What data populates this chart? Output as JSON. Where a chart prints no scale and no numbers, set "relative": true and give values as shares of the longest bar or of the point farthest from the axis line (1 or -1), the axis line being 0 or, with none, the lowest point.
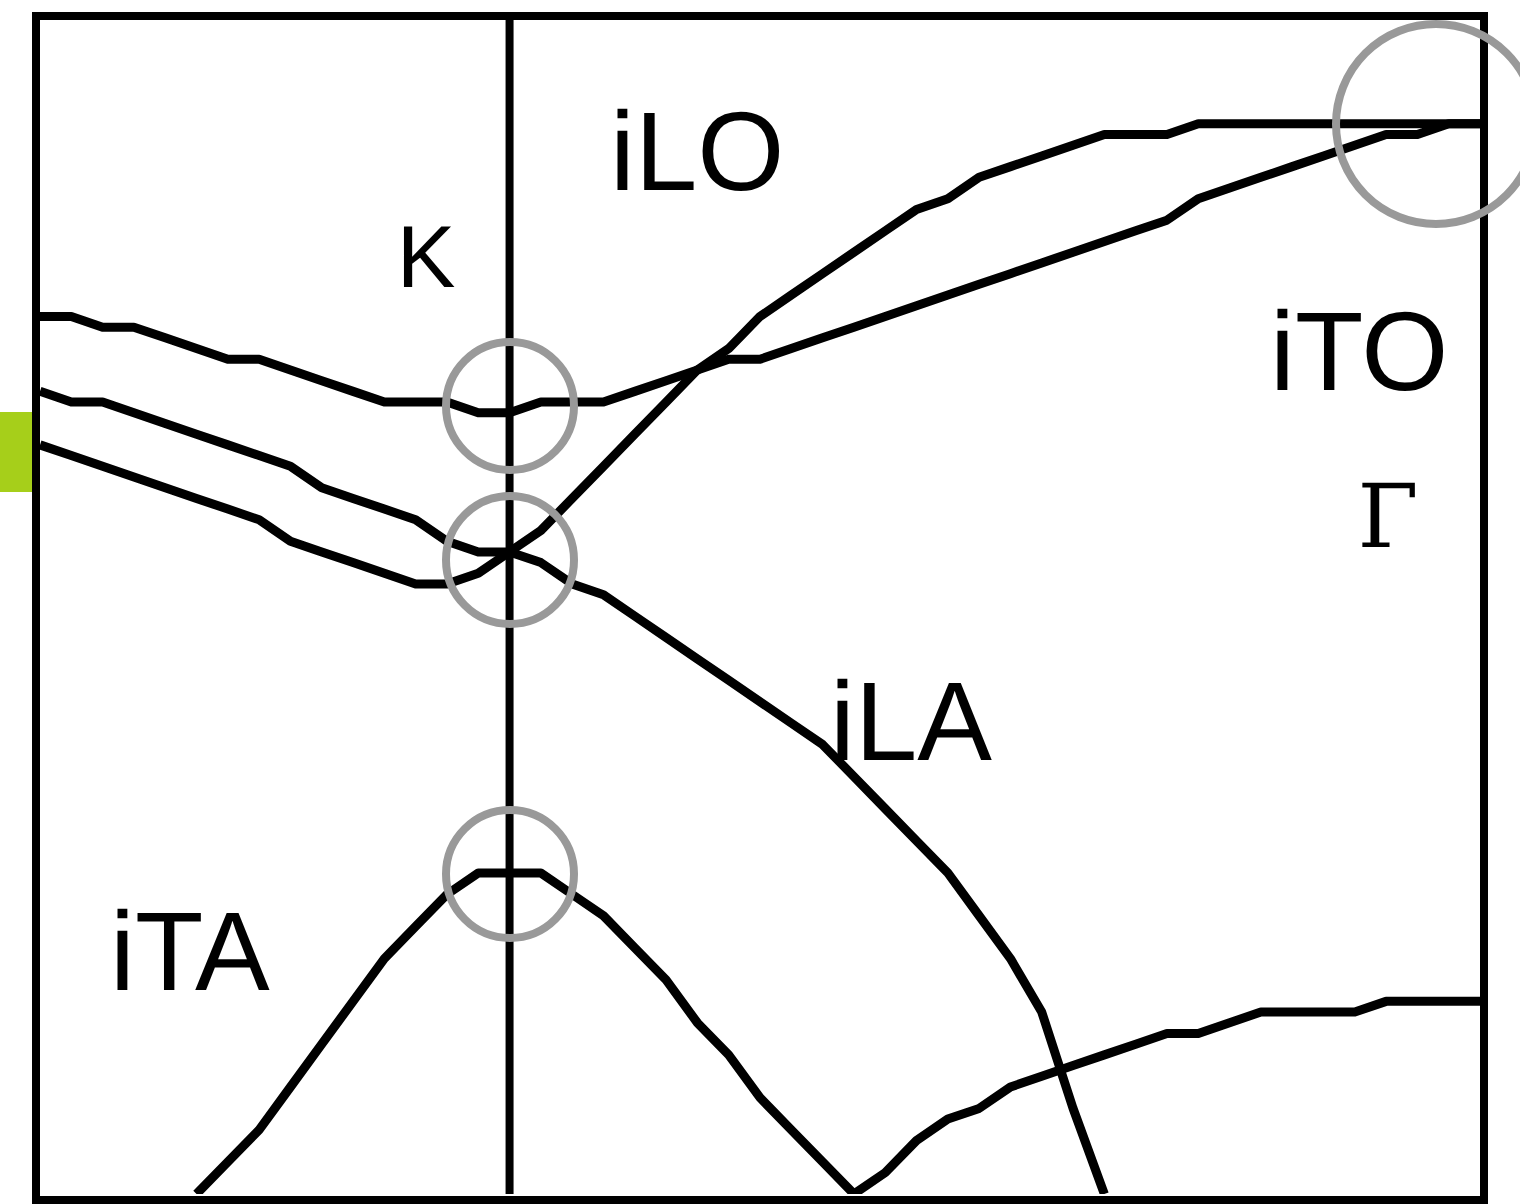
{
  "chart_data": {
    "type": "line",
    "relative": true,
    "marker": "none",
    "line_style": "solid",
    "annotations": [
      "K",
      "Γ"
    ],
    "categories": [
      null,
      null,
      null,
      null,
      null,
      null,
      null,
      null,
      null,
      null,
      null,
      null,
      null,
      null,
      null,
      null,
      null,
      null,
      null,
      null,
      null,
      null,
      null,
      null,
      null,
      null,
      null,
      null,
      null,
      null,
      null,
      null,
      null,
      null,
      null,
      null,
      null,
      null,
      null,
      null,
      null,
      null,
      null,
      null,
      null,
      null,
      null
    ],
    "series": [
      {
        "name": "iTO",
        "color": "#000000",
        "values": [
          0.82,
          0.82,
          0.81,
          0.81,
          0.8,
          0.79,
          0.78,
          0.78,
          0.77,
          0.76,
          0.75,
          0.74,
          0.74,
          0.74,
          0.73,
          0.73,
          0.74,
          0.74,
          0.74,
          0.75,
          0.76,
          0.77,
          0.78,
          0.78,
          0.79,
          0.8,
          0.81,
          0.82,
          0.83,
          0.84,
          0.85,
          0.86,
          0.87,
          0.88,
          0.89,
          0.9,
          0.91,
          0.93,
          0.94,
          0.95,
          0.96,
          0.97,
          0.98,
          0.99,
          0.99,
          1.0,
          1
        ]
      },
      {
        "name": "iLA",
        "color": "#000000",
        "values": [
          0.75,
          0.74,
          0.74,
          0.73,
          0.72,
          0.71,
          0.7,
          0.69,
          0.68,
          0.66,
          0.65,
          0.64,
          0.63,
          0.61,
          0.6,
          0.6,
          0.59,
          0.57,
          0.56,
          0.54,
          0.52,
          0.5,
          0.48,
          0.46,
          0.44,
          0.42,
          0.39,
          0.36,
          0.33,
          0.3,
          0.26,
          0.22,
          0.17,
          0.08,
          0,
          null,
          null,
          null,
          null,
          null,
          null,
          null,
          null,
          null,
          null,
          null,
          null
        ]
      },
      {
        "name": "iLO",
        "color": "#000000",
        "values": [
          0.7,
          0.69,
          0.68,
          0.67,
          0.66,
          0.65,
          0.64,
          0.63,
          0.61,
          0.6,
          0.59,
          0.58,
          0.57,
          0.57,
          0.58,
          0.6,
          0.62,
          0.65,
          0.68,
          0.71,
          0.74,
          0.77,
          0.79,
          0.82,
          0.84,
          0.86,
          0.88,
          0.9,
          0.92,
          0.93,
          0.95,
          0.96,
          0.97,
          0.98,
          0.99,
          0.99,
          0.99,
          1.0,
          1.0,
          1.0,
          1.0,
          1.0,
          1.0,
          1.0,
          1.0,
          1.0,
          1
        ]
      },
      {
        "name": "iTA",
        "color": "#000000",
        "values": [
          null,
          null,
          null,
          null,
          null,
          0,
          0.03,
          0.06,
          0.1,
          0.14,
          0.18,
          0.22,
          0.25,
          0.28,
          0.3,
          0.3,
          0.3,
          0.28,
          0.26,
          0.23,
          0.2,
          0.16,
          0.13,
          0.09,
          0.06,
          0.03,
          0,
          null,
          null,
          null,
          null,
          null,
          null,
          null,
          null,
          null,
          null,
          null,
          null,
          null,
          null,
          null,
          null,
          null,
          null,
          null,
          null
        ]
      },
      {
        "color": "#000000",
        "values": [
          null,
          null,
          null,
          null,
          null,
          null,
          null,
          null,
          null,
          null,
          null,
          null,
          null,
          null,
          null,
          null,
          null,
          null,
          null,
          null,
          null,
          null,
          null,
          null,
          null,
          null,
          0,
          0.02,
          0.05,
          0.07,
          0.08,
          0.1,
          0.11,
          0.12,
          0.13,
          0.14,
          0.15,
          0.15,
          0.16,
          0.17,
          0.17,
          0.17,
          0.17,
          0.18,
          0.18,
          0.18,
          0.18
        ]
      }
    ]
  }
}
